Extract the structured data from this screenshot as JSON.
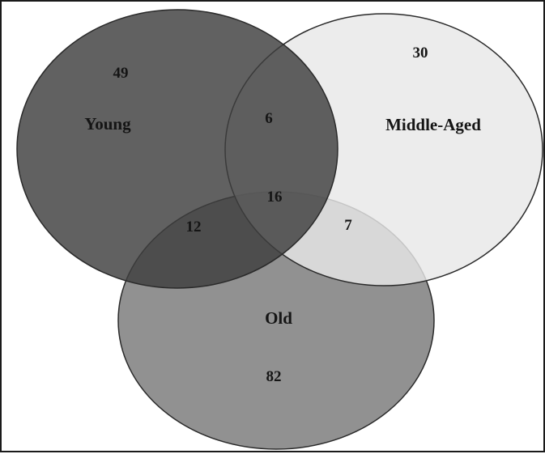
{
  "diagram": {
    "type": "venn",
    "sets": [
      {
        "id": "young",
        "label": "Young",
        "only": "49",
        "fill": "#4f4f4f"
      },
      {
        "id": "middle",
        "label": "Middle-Aged",
        "only": "30",
        "fill": "#e4e4e4"
      },
      {
        "id": "old",
        "label": "Old",
        "only": "82",
        "fill": "#7c7c7c"
      }
    ],
    "intersections": {
      "young_middle": "6",
      "young_old": "12",
      "middle_old": "7",
      "all_three": "16"
    },
    "colors": {
      "outline": "#2a2a2a",
      "text": "#151515",
      "border": "#1a1a1a"
    }
  }
}
